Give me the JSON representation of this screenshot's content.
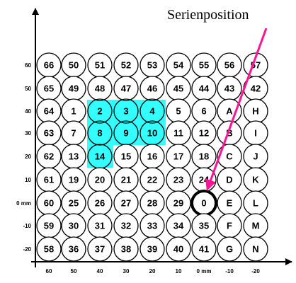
{
  "annotation": "Serienposition",
  "colors": {
    "highlight": "#33ffff",
    "arrow": "#ff1493",
    "stroke": "#000000",
    "background": "#ffffff"
  },
  "y_ticks": [
    "60",
    "50",
    "40",
    "30",
    "20",
    "10",
    "0 mm",
    "-10",
    "-20"
  ],
  "x_ticks": [
    "60",
    "50",
    "40",
    "30",
    "20",
    "10",
    "0 mm",
    "-10",
    "-20"
  ],
  "grid": [
    [
      "66",
      "50",
      "51",
      "52",
      "53",
      "54",
      "55",
      "56",
      "57"
    ],
    [
      "65",
      "49",
      "48",
      "47",
      "46",
      "45",
      "44",
      "43",
      "42"
    ],
    [
      "64",
      "1",
      "2",
      "3",
      "4",
      "5",
      "6",
      "A",
      "H"
    ],
    [
      "63",
      "7",
      "8",
      "9",
      "10",
      "11",
      "12",
      "B",
      "I"
    ],
    [
      "62",
      "13",
      "14",
      "15",
      "16",
      "17",
      "18",
      "C",
      "J"
    ],
    [
      "61",
      "19",
      "20",
      "21",
      "22",
      "23",
      "24",
      "D",
      "K"
    ],
    [
      "60",
      "25",
      "26",
      "27",
      "28",
      "29",
      "0",
      "E",
      "L"
    ],
    [
      "59",
      "30",
      "31",
      "32",
      "33",
      "34",
      "35",
      "F",
      "M"
    ],
    [
      "58",
      "36",
      "37",
      "38",
      "39",
      "40",
      "41",
      "G",
      "N"
    ]
  ],
  "highlighted_cells": [
    "2",
    "3",
    "4",
    "8",
    "9",
    "10",
    "14"
  ],
  "marked_cell": "0"
}
